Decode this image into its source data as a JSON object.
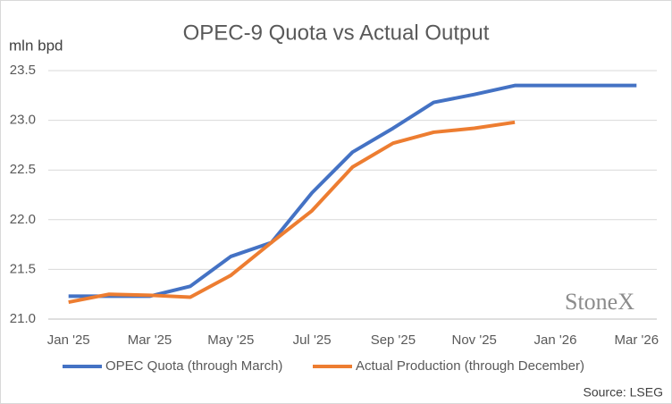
{
  "chart_data": {
    "type": "line",
    "title": "OPEC-9 Quota vs Actual Output",
    "y_label": "mln bpd",
    "categories": [
      "Jan '25",
      null,
      "Mar '25",
      null,
      "May '25",
      null,
      "Jul '25",
      null,
      "Sep '25",
      null,
      "Nov '25",
      null,
      "Jan '26",
      null,
      "Mar '26"
    ],
    "series": [
      {
        "name": "OPEC Quota (through March)",
        "color": "#4472c4",
        "values": [
          21.23,
          21.23,
          21.23,
          21.33,
          21.63,
          21.77,
          22.27,
          22.68,
          22.92,
          23.18,
          23.26,
          23.35,
          23.35,
          23.35,
          23.35
        ]
      },
      {
        "name": "Actual Production (through December)",
        "color": "#ed7d31",
        "values": [
          21.17,
          21.25,
          21.24,
          21.22,
          21.44,
          21.77,
          22.09,
          22.53,
          22.77,
          22.88,
          22.92,
          22.98,
          null,
          null,
          null
        ]
      }
    ],
    "ylim": [
      21,
      23.5
    ],
    "yticks": [
      {
        "value": 21,
        "label": "21.0"
      },
      21.5,
      {
        "value": 22,
        "label": "22.0"
      },
      22.5,
      {
        "value": 23,
        "label": "23.0"
      },
      23.5
    ],
    "grid": true,
    "legend": "bottom",
    "watermark": "StoneX",
    "source": "Source: LSEG"
  }
}
